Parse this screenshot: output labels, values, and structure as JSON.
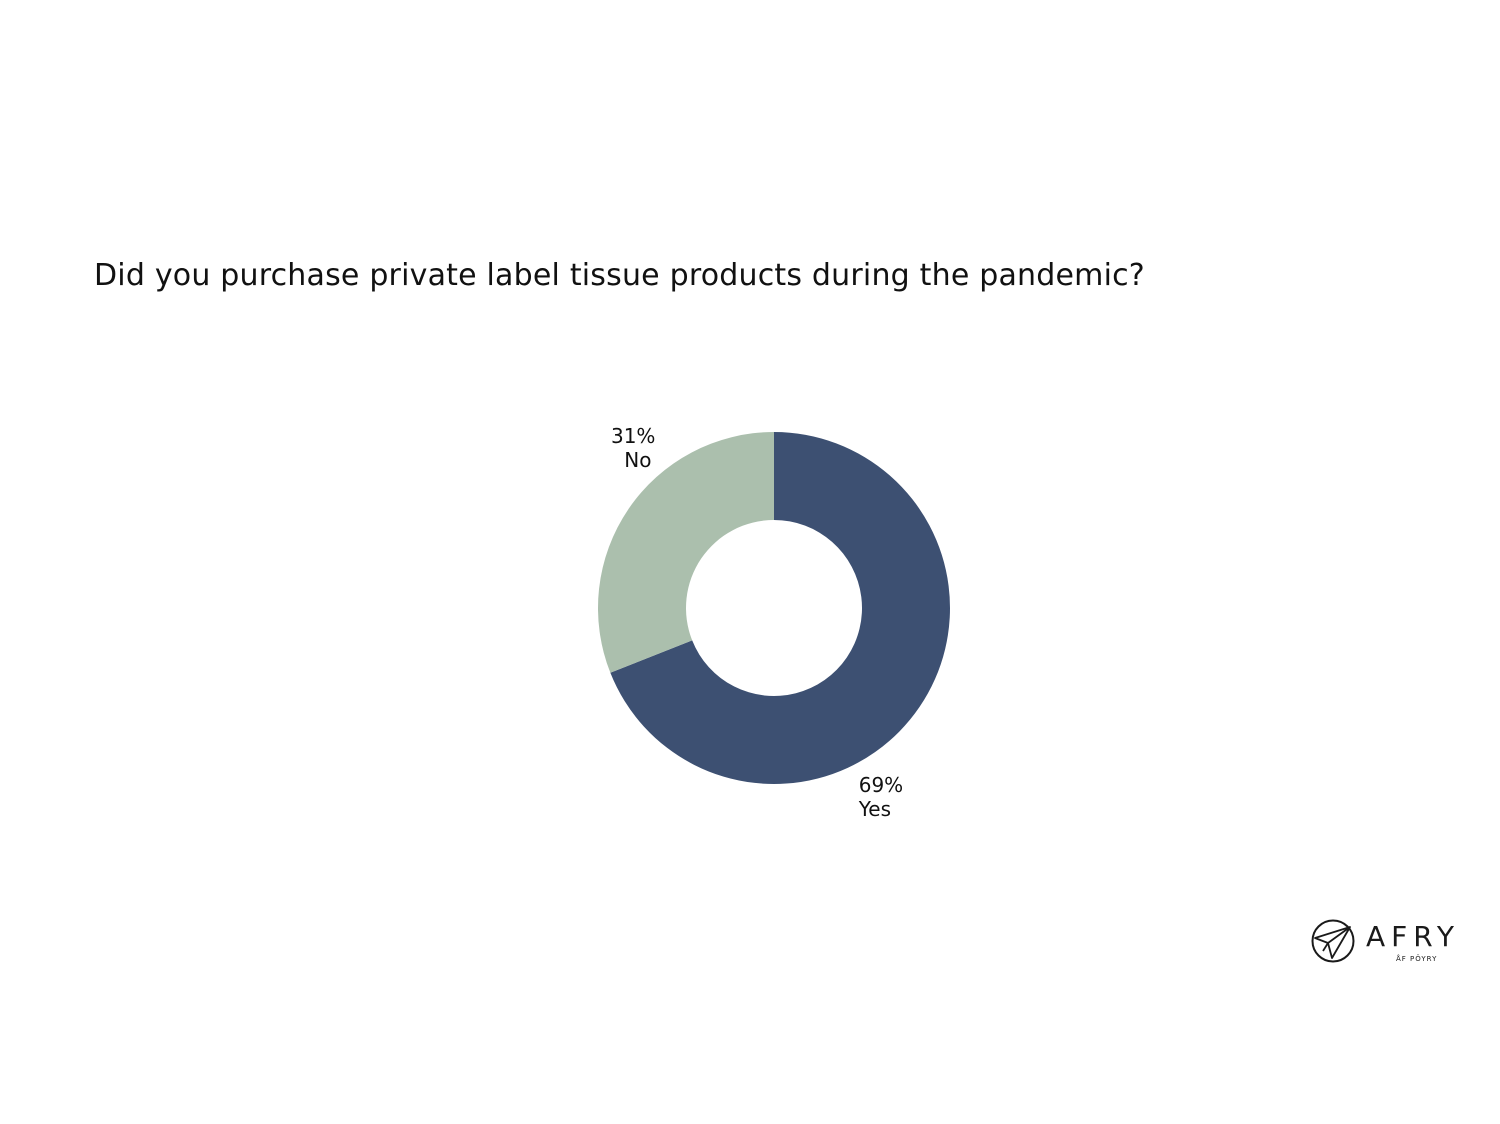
{
  "title": "Did you purchase private label tissue products during the pandemic?",
  "chart_data": {
    "type": "pie",
    "variant": "donut",
    "title": "Did you purchase private label tissue products during the pandemic?",
    "categories": [
      "Yes",
      "No"
    ],
    "values": [
      69,
      31
    ],
    "value_labels": [
      "69%",
      "31%"
    ],
    "colors": [
      "#3d5072",
      "#abbfad"
    ],
    "start": "12 o'clock, clockwise"
  },
  "logo": {
    "wordmark": "AFRY",
    "subtitle": "ÅF PÖYRY",
    "icon": "paper-plane-circle-icon"
  }
}
